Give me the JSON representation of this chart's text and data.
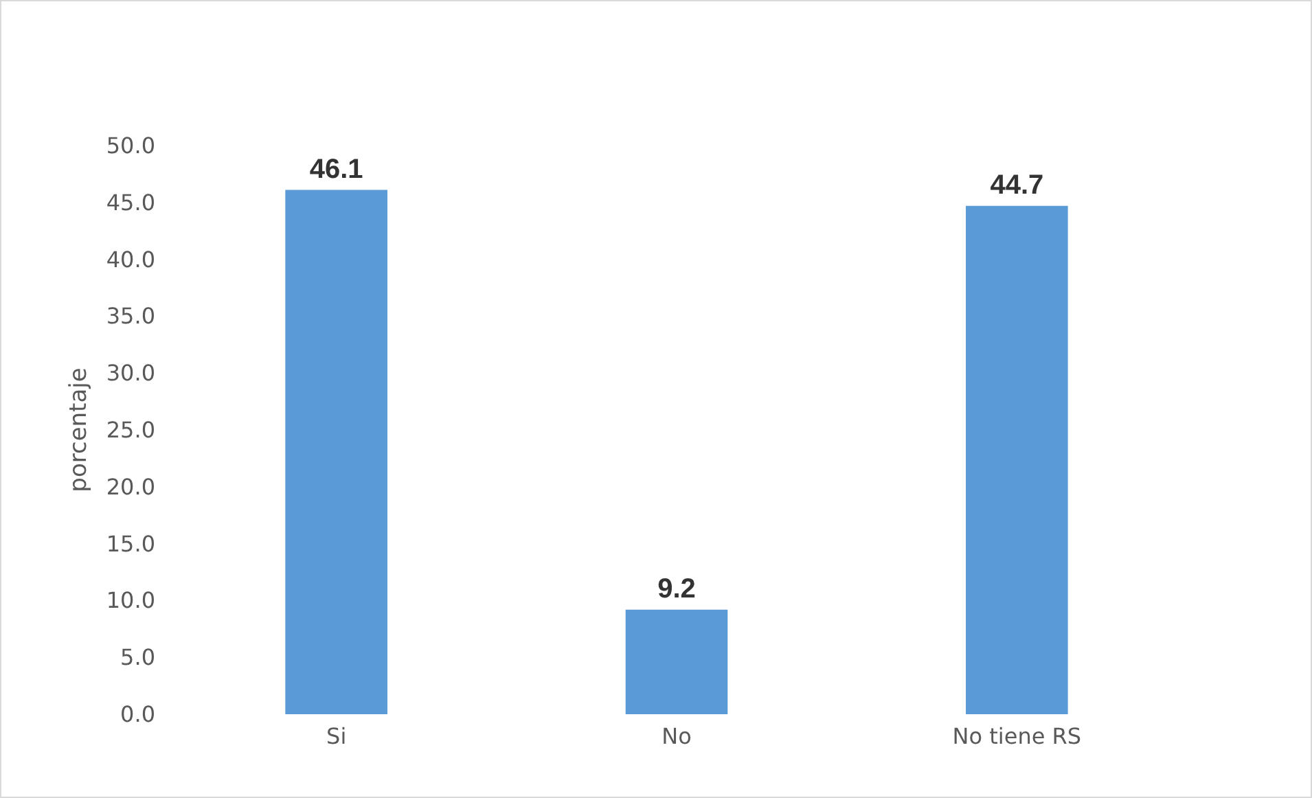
{
  "chart_data": {
    "type": "bar",
    "ylabel": "porcentaje",
    "categories": [
      "Si",
      "No",
      "No tiene RS"
    ],
    "values": [
      46.1,
      9.2,
      44.7
    ],
    "color": "#5b9bd5",
    "data_labels": true,
    "ylim": [
      0,
      50
    ],
    "yticks": [
      {
        "value": 0,
        "label": "0.0"
      },
      {
        "value": 5,
        "label": "5.0"
      },
      {
        "value": 10,
        "label": "10.0"
      },
      {
        "value": 15,
        "label": "15.0"
      },
      {
        "value": 20,
        "label": "20.0"
      },
      {
        "value": 25,
        "label": "25.0"
      },
      {
        "value": 30,
        "label": "30.0"
      },
      {
        "value": 35,
        "label": "35.0"
      },
      {
        "value": 40,
        "label": "40.0"
      },
      {
        "value": 45,
        "label": "45.0"
      },
      {
        "value": 50,
        "label": "50.0"
      }
    ],
    "grid": false
  }
}
